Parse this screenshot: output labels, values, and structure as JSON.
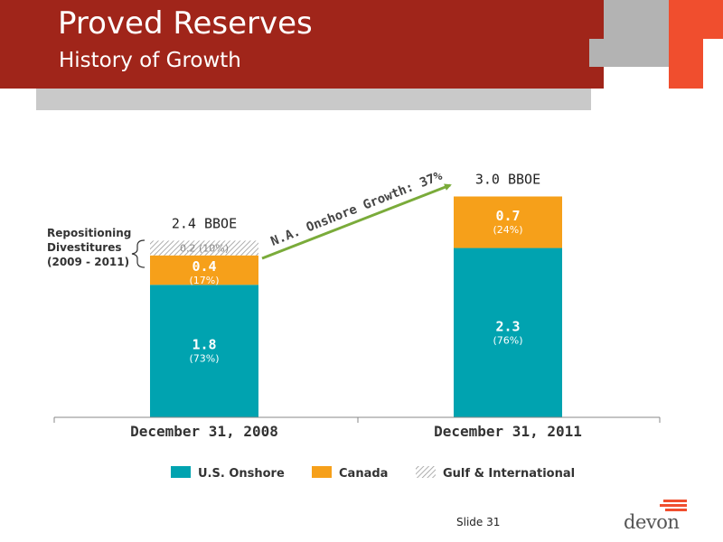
{
  "header": {
    "title": "Proved Reserves",
    "subtitle": "History of Growth"
  },
  "colors": {
    "us_onshore": "#00a3b0",
    "canada": "#f6a01a",
    "gulf_international": "hatched-gray",
    "header_red": "#a0251a",
    "accent_orange": "#f04e2e",
    "arrow_green": "#7aab3a"
  },
  "chart_data": {
    "type": "bar",
    "stacked": true,
    "categories": [
      "December 31, 2008",
      "December 31, 2011"
    ],
    "unit": "BBOE",
    "totals": [
      "2.4 BBOE",
      "3.0 BBOE"
    ],
    "series": [
      {
        "name": "U.S. Onshore",
        "values": [
          1.8,
          2.3
        ],
        "value_labels": [
          "1.8",
          "2.3"
        ],
        "pct_labels": [
          "(73%)",
          "(76%)"
        ]
      },
      {
        "name": "Canada",
        "values": [
          0.4,
          0.7
        ],
        "value_labels": [
          "0.4",
          "0.7"
        ],
        "pct_labels": [
          "(17%)",
          "(24%)"
        ]
      },
      {
        "name": "Gulf & International",
        "values": [
          0.2,
          0
        ],
        "value_labels": [
          "0.2 (10%)",
          ""
        ],
        "pct_labels": [
          "",
          ""
        ]
      }
    ],
    "annotations": {
      "growth_arrow": "N.A. Onshore Growth: 37%",
      "bracket_label": [
        "Repositioning",
        "Divestitures",
        "(2009 - 2011)"
      ]
    },
    "legend_position": "bottom",
    "grid": false
  },
  "footer": {
    "slide_number": "Slide 31",
    "logo_text": "devon"
  }
}
